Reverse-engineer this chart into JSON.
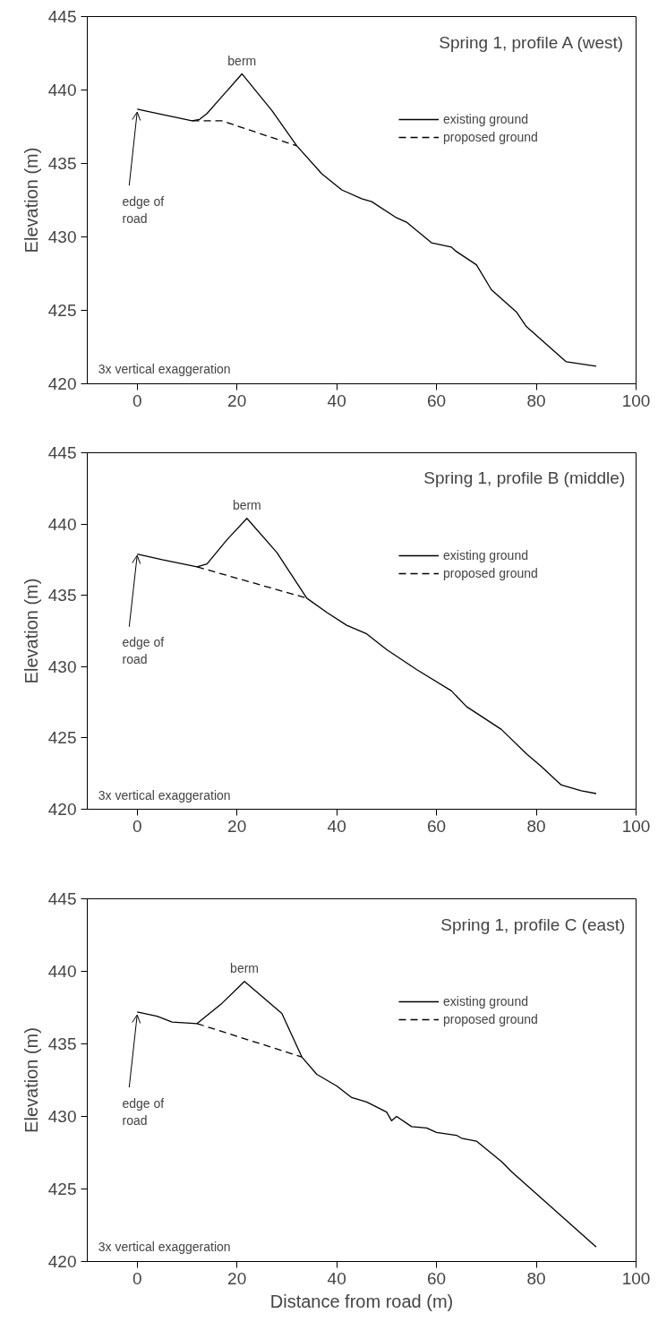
{
  "chart_data": [
    {
      "type": "line",
      "title": "Spring 1, profile A (west)",
      "ylabel": "Elevation (m)",
      "xlim": [
        -10,
        100
      ],
      "xticks": [
        0,
        20,
        40,
        60,
        80,
        100
      ],
      "ylim": [
        420,
        445
      ],
      "yticks": [
        420,
        425,
        430,
        435,
        440,
        445
      ],
      "legend": "top right",
      "series": [
        {
          "name": "existing ground",
          "color": "#000000",
          "line_style": "solid",
          "x": [
            0,
            4,
            11,
            12.5,
            14,
            21,
            27,
            32,
            37,
            41,
            45,
            47,
            52,
            54,
            59,
            63,
            64,
            68,
            71,
            76,
            78,
            86,
            92
          ],
          "values": [
            438.7,
            438.4,
            437.9,
            438.0,
            438.4,
            441.1,
            438.6,
            436.2,
            434.3,
            433.2,
            432.6,
            432.4,
            431.3,
            431.0,
            429.6,
            429.3,
            429.0,
            428.1,
            426.4,
            424.9,
            423.9,
            421.5,
            421.2
          ]
        },
        {
          "name": "proposed ground",
          "color": "#000000",
          "line_style": "dashed",
          "x": [
            11,
            17,
            32
          ],
          "values": [
            437.9,
            437.9,
            436.2
          ]
        }
      ],
      "annotations": [
        {
          "text": "berm",
          "x": 21,
          "y": 441.1
        },
        {
          "text": "edge of\nroad",
          "x": 0,
          "y": 438.5
        },
        "3x vertical exaggeration"
      ]
    },
    {
      "type": "line",
      "title": "Spring 1, profile B (middle)",
      "ylabel": "Elevation (m)",
      "xlim": [
        -10,
        100
      ],
      "xticks": [
        0,
        20,
        40,
        60,
        80,
        100
      ],
      "ylim": [
        420,
        445
      ],
      "yticks": [
        420,
        425,
        430,
        435,
        440,
        445
      ],
      "legend": "top right",
      "series": [
        {
          "name": "existing ground",
          "color": "#000000",
          "line_style": "solid",
          "x": [
            0,
            5,
            12,
            14,
            18,
            22,
            28,
            34,
            38,
            42,
            46,
            50,
            56,
            63,
            66,
            73,
            78,
            81,
            85,
            89,
            92
          ],
          "values": [
            437.9,
            437.5,
            437.0,
            437.2,
            438.9,
            440.4,
            438.0,
            434.8,
            433.8,
            432.9,
            432.3,
            431.2,
            429.8,
            428.3,
            427.2,
            425.6,
            423.9,
            423.0,
            421.7,
            421.3,
            421.1
          ]
        },
        {
          "name": "proposed ground",
          "color": "#000000",
          "line_style": "dashed",
          "x": [
            12,
            34
          ],
          "values": [
            437.0,
            434.8
          ]
        }
      ],
      "annotations": [
        {
          "text": "berm",
          "x": 22,
          "y": 440.4
        },
        {
          "text": "edge of\nroad",
          "x": 0,
          "y": 437.8
        },
        "3x vertical exaggeration"
      ]
    },
    {
      "type": "line",
      "title": "Spring 1, profile C (east)",
      "xlabel": "Distance from road (m)",
      "ylabel": "Elevation (m)",
      "xlim": [
        -10,
        100
      ],
      "xticks": [
        0,
        20,
        40,
        60,
        80,
        100
      ],
      "ylim": [
        420,
        445
      ],
      "yticks": [
        420,
        425,
        430,
        435,
        440,
        445
      ],
      "legend": "top right",
      "series": [
        {
          "name": "existing ground",
          "color": "#000000",
          "line_style": "solid",
          "x": [
            0,
            4,
            7,
            12,
            17,
            21.5,
            29,
            33,
            36,
            40,
            43,
            46,
            50,
            51,
            52,
            55,
            58,
            60,
            64,
            65,
            68,
            73,
            75,
            92
          ],
          "values": [
            437.2,
            436.9,
            436.5,
            436.4,
            437.8,
            439.3,
            437.1,
            434.1,
            432.9,
            432.1,
            431.3,
            431.0,
            430.3,
            429.7,
            430.0,
            429.3,
            429.2,
            428.9,
            428.7,
            428.5,
            428.3,
            426.9,
            426.2,
            421.0
          ]
        },
        {
          "name": "proposed ground",
          "color": "#000000",
          "line_style": "dashed",
          "x": [
            12,
            33
          ],
          "values": [
            436.4,
            434.1
          ]
        }
      ],
      "annotations": [
        {
          "text": "berm",
          "x": 21.5,
          "y": 439.3
        },
        {
          "text": "edge of\nroad",
          "x": 0,
          "y": 437.0
        },
        "3x vertical exaggeration"
      ]
    }
  ]
}
